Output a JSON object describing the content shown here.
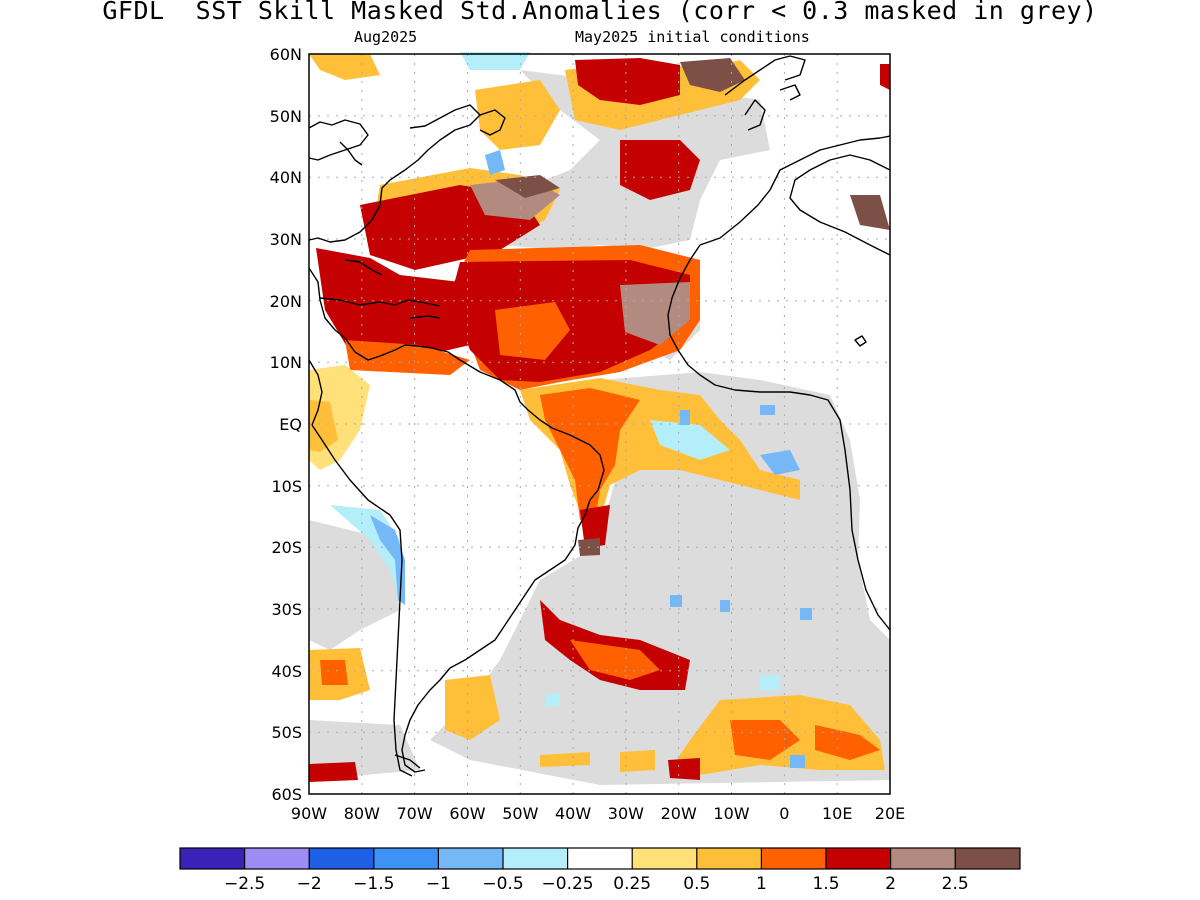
{
  "title": "GFDL  SST Skill Masked Std.Anomalies (corr < 0.3 masked in grey)",
  "subtitle_left": "Aug2025",
  "subtitle_right": "May2025 initial conditions",
  "map": {
    "lat_labels": [
      "60N",
      "50N",
      "40N",
      "30N",
      "20N",
      "10N",
      "EQ",
      "10S",
      "20S",
      "30S",
      "40S",
      "50S",
      "60S"
    ],
    "lon_labels": [
      "90W",
      "80W",
      "70W",
      "60W",
      "50W",
      "40W",
      "30W",
      "20W",
      "10W",
      "0",
      "10E",
      "20E"
    ],
    "mask_color": "#dcdcdc"
  },
  "colorbar": {
    "colors": [
      "#3a21b8",
      "#9e8cf5",
      "#1f5fe6",
      "#3e92f5",
      "#74b8f7",
      "#b3eefa",
      "#ffffff",
      "#ffe079",
      "#ffbf38",
      "#ff6000",
      "#c40000",
      "#b38a80",
      "#7c5046"
    ],
    "labels": [
      "−2.5",
      "−2",
      "−1.5",
      "−1",
      "−0.5",
      "−0.25",
      "0.25",
      "0.5",
      "1",
      "1.5",
      "2",
      "2.5"
    ]
  }
}
